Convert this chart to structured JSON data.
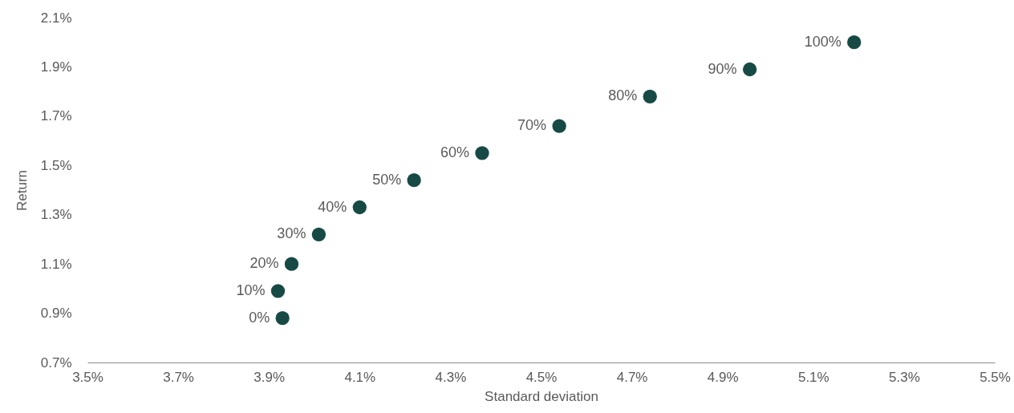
{
  "chart_data": {
    "type": "scatter",
    "xlabel": "Standard deviation",
    "ylabel": "Return",
    "x": [
      3.93,
      3.92,
      3.95,
      4.01,
      4.1,
      4.22,
      4.37,
      4.54,
      4.74,
      4.96,
      5.19
    ],
    "values": [
      0.88,
      0.99,
      1.1,
      1.22,
      1.33,
      1.44,
      1.55,
      1.66,
      1.78,
      1.89,
      2.0
    ],
    "annotations": [
      {
        "text": "0%",
        "x": 3.93,
        "y": 0.88
      },
      {
        "text": "10%",
        "x": 3.92,
        "y": 0.99
      },
      {
        "text": "20%",
        "x": 3.95,
        "y": 1.1
      },
      {
        "text": "30%",
        "x": 4.01,
        "y": 1.22
      },
      {
        "text": "40%",
        "x": 4.1,
        "y": 1.33
      },
      {
        "text": "50%",
        "x": 4.22,
        "y": 1.44
      },
      {
        "text": "60%",
        "x": 4.37,
        "y": 1.55
      },
      {
        "text": "70%",
        "x": 4.54,
        "y": 1.66
      },
      {
        "text": "80%",
        "x": 4.74,
        "y": 1.78
      },
      {
        "text": "90%",
        "x": 4.96,
        "y": 1.89
      },
      {
        "text": "100%",
        "x": 5.19,
        "y": 2.0
      }
    ],
    "color": "#174a45",
    "marker": "circle",
    "grid": false,
    "xlim": [
      3.5,
      5.5
    ],
    "xticks": [
      {
        "value": 3.5,
        "label": "3.5%"
      },
      {
        "value": 3.7,
        "label": "3.7%"
      },
      {
        "value": 3.9,
        "label": "3.9%"
      },
      {
        "value": 4.1,
        "label": "4.1%"
      },
      {
        "value": 4.3,
        "label": "4.3%"
      },
      {
        "value": 4.5,
        "label": "4.5%"
      },
      {
        "value": 4.7,
        "label": "4.7%"
      },
      {
        "value": 4.9,
        "label": "4.9%"
      },
      {
        "value": 5.1,
        "label": "5.1%"
      },
      {
        "value": 5.3,
        "label": "5.3%"
      },
      {
        "value": 5.5,
        "label": "5.5%"
      }
    ],
    "ylim": [
      0.7,
      2.1
    ],
    "yticks": [
      {
        "value": 0.7,
        "label": "0.7%"
      },
      {
        "value": 0.9,
        "label": "0.9%"
      },
      {
        "value": 1.1,
        "label": "1.1%"
      },
      {
        "value": 1.3,
        "label": "1.3%"
      },
      {
        "value": 1.5,
        "label": "1.5%"
      },
      {
        "value": 1.7,
        "label": "1.7%"
      },
      {
        "value": 1.9,
        "label": "1.9%"
      },
      {
        "value": 2.1,
        "label": "2.1%"
      }
    ]
  }
}
